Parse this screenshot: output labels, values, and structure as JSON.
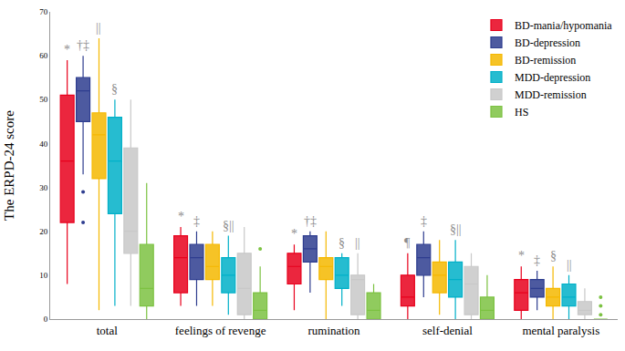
{
  "chart_data": {
    "type": "box",
    "y_label": "The ERPD-24 score",
    "categories": [
      "total",
      "feelings of revenge",
      "rumination",
      "self-denial",
      "mental paralysis"
    ],
    "ylim": [
      0,
      70
    ],
    "yticks": [
      0,
      10,
      20,
      30,
      40,
      50,
      60,
      70
    ],
    "grid": false,
    "legend": "top right",
    "series": [
      {
        "name": "BD-mania/hypomania",
        "color": "#e8001c",
        "q1": [
          22,
          6,
          8,
          3,
          2
        ],
        "median": [
          36,
          14,
          12,
          5,
          6
        ],
        "q3": [
          51,
          19,
          15,
          10,
          9
        ],
        "lowerfence": [
          8,
          3,
          2,
          0,
          0
        ],
        "upperfence": [
          59,
          21,
          17,
          15,
          12
        ],
        "outliers": [
          [],
          [],
          [],
          [],
          []
        ]
      },
      {
        "name": "BD-depression",
        "color": "#2e3d8f",
        "q1": [
          45,
          9,
          13,
          10,
          5
        ],
        "median": [
          52,
          14,
          16,
          14,
          7
        ],
        "q3": [
          55,
          17,
          19,
          17,
          9
        ],
        "lowerfence": [
          33,
          3,
          6,
          5,
          2
        ],
        "upperfence": [
          60,
          20,
          20,
          20,
          11
        ],
        "outliers": [
          [
            29,
            22
          ],
          [],
          [],
          [],
          []
        ]
      },
      {
        "name": "BD-remission",
        "color": "#f5b800",
        "q1": [
          32,
          9,
          9,
          6,
          3
        ],
        "median": [
          42,
          12,
          12,
          10,
          5
        ],
        "q3": [
          47,
          17,
          14,
          13,
          7
        ],
        "lowerfence": [
          2,
          3,
          0,
          1,
          0
        ],
        "upperfence": [
          64,
          20,
          20,
          18,
          12
        ],
        "outliers": [
          [],
          [],
          [],
          [],
          []
        ]
      },
      {
        "name": "MDD-depression",
        "color": "#00b0c8",
        "q1": [
          24,
          6,
          7,
          5,
          3
        ],
        "median": [
          36,
          10,
          10,
          9,
          5
        ],
        "q3": [
          46,
          14,
          14,
          13,
          8
        ],
        "lowerfence": [
          3,
          1,
          3,
          0,
          0
        ],
        "upperfence": [
          50,
          19,
          15,
          18,
          10
        ],
        "outliers": [
          [],
          [],
          [],
          [],
          []
        ]
      },
      {
        "name": "MDD-remission",
        "color": "#c8c8c8",
        "q1": [
          15,
          1,
          1,
          1,
          1
        ],
        "median": [
          20,
          7,
          9,
          8,
          2
        ],
        "q3": [
          39,
          15,
          10,
          12,
          4
        ],
        "lowerfence": [
          3,
          0,
          0,
          0,
          0
        ],
        "upperfence": [
          50,
          21,
          15,
          15,
          7
        ],
        "outliers": [
          [],
          [],
          [],
          [],
          []
        ]
      },
      {
        "name": "HS",
        "color": "#7cc242",
        "q1": [
          3,
          0,
          0,
          0,
          0
        ],
        "median": [
          7,
          2,
          2,
          2,
          0
        ],
        "q3": [
          17,
          6,
          6,
          5,
          0
        ],
        "lowerfence": [
          0,
          0,
          0,
          0,
          0
        ],
        "upperfence": [
          31,
          12,
          8,
          10,
          0
        ],
        "outliers": [
          [],
          [
            16
          ],
          [],
          [],
          [
            1,
            3,
            5
          ]
        ]
      }
    ],
    "marks": [
      {
        "category": "total",
        "series": "BD-mania/hypomania",
        "text": "*"
      },
      {
        "category": "total",
        "series": "BD-depression",
        "text": "†‡"
      },
      {
        "category": "total",
        "series": "MDD-depression",
        "text": "§"
      },
      {
        "category": "total",
        "series": "BD-remission",
        "text": "||"
      },
      {
        "category": "feelings of revenge",
        "series": "BD-mania/hypomania",
        "text": "*"
      },
      {
        "category": "feelings of revenge",
        "series": "BD-depression",
        "text": "‡"
      },
      {
        "category": "feelings of revenge",
        "series": "MDD-depression",
        "text": "§||"
      },
      {
        "category": "rumination",
        "series": "BD-mania/hypomania",
        "text": "*"
      },
      {
        "category": "rumination",
        "series": "BD-depression",
        "text": "†‡"
      },
      {
        "category": "rumination",
        "series": "MDD-depression",
        "text": "§"
      },
      {
        "category": "rumination",
        "series": "MDD-remission",
        "text": "||"
      },
      {
        "category": "self-denial",
        "series": "BD-mania/hypomania",
        "text": "¶"
      },
      {
        "category": "self-denial",
        "series": "BD-depression",
        "text": "‡"
      },
      {
        "category": "self-denial",
        "series": "MDD-depression",
        "text": "§||"
      },
      {
        "category": "mental paralysis",
        "series": "BD-mania/hypomania",
        "text": "*"
      },
      {
        "category": "mental paralysis",
        "series": "BD-depression",
        "text": "‡"
      },
      {
        "category": "mental paralysis",
        "series": "BD-remission",
        "text": "§"
      },
      {
        "category": "mental paralysis",
        "series": "MDD-depression",
        "text": "||"
      }
    ]
  }
}
